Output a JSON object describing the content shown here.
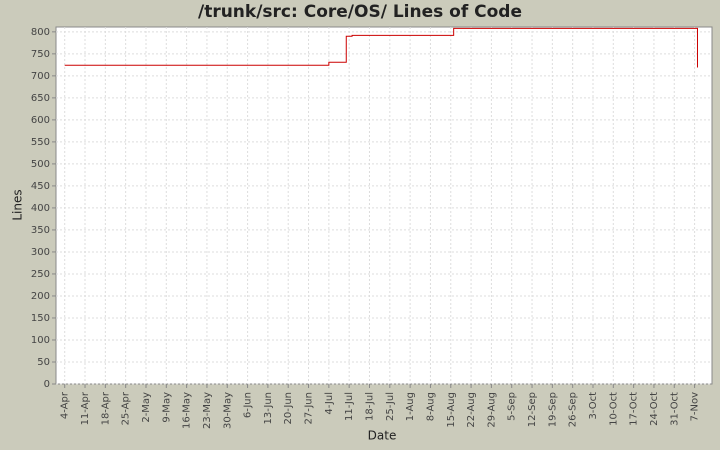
{
  "chart_data": {
    "type": "line",
    "title": "/trunk/src: Core/OS/ Lines of Code",
    "x_label": "Date",
    "y_label": "Lines",
    "x": [
      "4-Apr",
      "4-Jul",
      "10-Jul",
      "12-Jul",
      "16-Aug",
      "8-Nov"
    ],
    "values": [
      724,
      731,
      790,
      792,
      808,
      719
    ],
    "color": "#cc0000",
    "step": true,
    "xlim": [
      "1-Apr",
      "13-Nov"
    ],
    "xticks": [
      "4-Apr",
      "11-Apr",
      "18-Apr",
      "25-Apr",
      "2-May",
      "9-May",
      "16-May",
      "23-May",
      "30-May",
      "6-Jun",
      "13-Jun",
      "20-Jun",
      "27-Jun",
      "4-Jul",
      "11-Jul",
      "18-Jul",
      "25-Jul",
      "1-Aug",
      "8-Aug",
      "15-Aug",
      "22-Aug",
      "29-Aug",
      "5-Sep",
      "12-Sep",
      "19-Sep",
      "26-Sep",
      "3-Oct",
      "10-Oct",
      "17-Oct",
      "24-Oct",
      "31-Oct",
      "7-Nov"
    ],
    "ylim": [
      0,
      811
    ],
    "yticks": [
      0,
      50,
      100,
      150,
      200,
      250,
      300,
      350,
      400,
      450,
      500,
      550,
      600,
      650,
      700,
      750,
      800
    ],
    "grid": true
  }
}
